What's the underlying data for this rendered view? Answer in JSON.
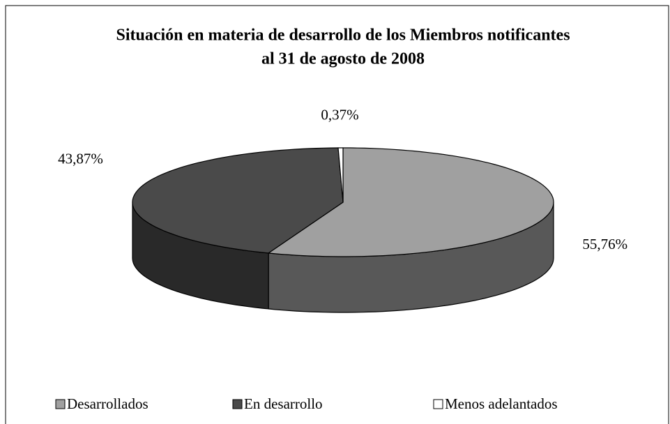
{
  "chart_data": {
    "type": "pie",
    "title": [
      "Situación en materia de desarrollo de los Miembros notificantes",
      "al 31 de agosto de 2008"
    ],
    "categories": [
      "Desarrollados",
      "En desarrollo",
      "Menos adelantados"
    ],
    "values": [
      55.76,
      43.87,
      0.37
    ],
    "value_labels": [
      "55,76%",
      "43,87%",
      "0,37%"
    ],
    "colors": [
      "#a0a0a0",
      "#4a4a4a",
      "#ffffff"
    ],
    "legend": "bottom"
  }
}
